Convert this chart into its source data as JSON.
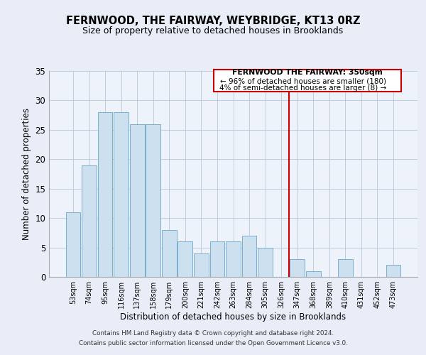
{
  "title": "FERNWOOD, THE FAIRWAY, WEYBRIDGE, KT13 0RZ",
  "subtitle": "Size of property relative to detached houses in Brooklands",
  "xlabel": "Distribution of detached houses by size in Brooklands",
  "ylabel": "Number of detached properties",
  "bar_labels": [
    "53sqm",
    "74sqm",
    "95sqm",
    "116sqm",
    "137sqm",
    "158sqm",
    "179sqm",
    "200sqm",
    "221sqm",
    "242sqm",
    "263sqm",
    "284sqm",
    "305sqm",
    "326sqm",
    "347sqm",
    "368sqm",
    "389sqm",
    "410sqm",
    "431sqm",
    "452sqm",
    "473sqm"
  ],
  "bar_values": [
    11,
    19,
    28,
    28,
    26,
    26,
    8,
    6,
    4,
    6,
    6,
    7,
    5,
    0,
    3,
    1,
    0,
    3,
    0,
    0,
    2
  ],
  "bar_color": "#cce0f0",
  "bar_edge_color": "#7aafcc",
  "marker_line_color": "#cc0000",
  "annotation_line1": "FERNWOOD THE FAIRWAY: 350sqm",
  "annotation_line2": "← 96% of detached houses are smaller (180)",
  "annotation_line3": "4% of semi-detached houses are larger (8) →",
  "ylim": [
    0,
    35
  ],
  "yticks": [
    0,
    5,
    10,
    15,
    20,
    25,
    30,
    35
  ],
  "footer_line1": "Contains HM Land Registry data © Crown copyright and database right 2024.",
  "footer_line2": "Contains public sector information licensed under the Open Government Licence v3.0.",
  "bg_color": "#e8edf8",
  "plot_bg_color": "#eef2fa"
}
